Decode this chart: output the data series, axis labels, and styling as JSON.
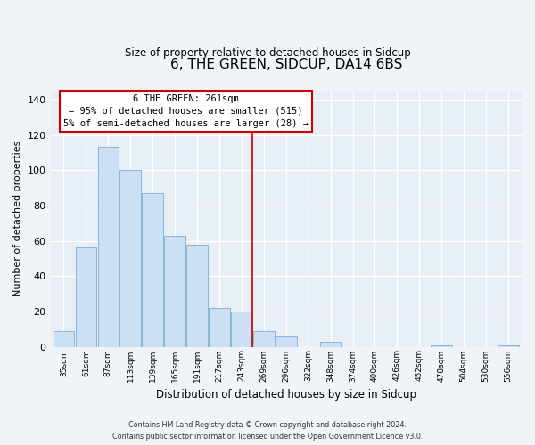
{
  "title": "6, THE GREEN, SIDCUP, DA14 6BS",
  "subtitle": "Size of property relative to detached houses in Sidcup",
  "xlabel": "Distribution of detached houses by size in Sidcup",
  "ylabel": "Number of detached properties",
  "bar_labels": [
    "35sqm",
    "61sqm",
    "87sqm",
    "113sqm",
    "139sqm",
    "165sqm",
    "191sqm",
    "217sqm",
    "243sqm",
    "269sqm",
    "296sqm",
    "322sqm",
    "348sqm",
    "374sqm",
    "400sqm",
    "426sqm",
    "452sqm",
    "478sqm",
    "504sqm",
    "530sqm",
    "556sqm"
  ],
  "bar_values": [
    9,
    56,
    113,
    100,
    87,
    63,
    58,
    22,
    20,
    9,
    6,
    0,
    3,
    0,
    0,
    0,
    0,
    1,
    0,
    0,
    1
  ],
  "bar_color": "#cce0f5",
  "bar_edge_color": "#8ab4d8",
  "vline_x": 8.5,
  "vline_color": "#cc0000",
  "annotation_title": "6 THE GREEN: 261sqm",
  "annotation_line1": "← 95% of detached houses are smaller (515)",
  "annotation_line2": "5% of semi-detached houses are larger (28) →",
  "annotation_box_color": "#ffffff",
  "annotation_box_edge": "#cc0000",
  "ylim": [
    0,
    145
  ],
  "yticks": [
    0,
    20,
    40,
    60,
    80,
    100,
    120,
    140
  ],
  "footer_line1": "Contains HM Land Registry data © Crown copyright and database right 2024.",
  "footer_line2": "Contains public sector information licensed under the Open Government Licence v3.0.",
  "bg_color": "#f0f4f8",
  "plot_bg_color": "#e8eef5",
  "grid_color": "#ffffff"
}
